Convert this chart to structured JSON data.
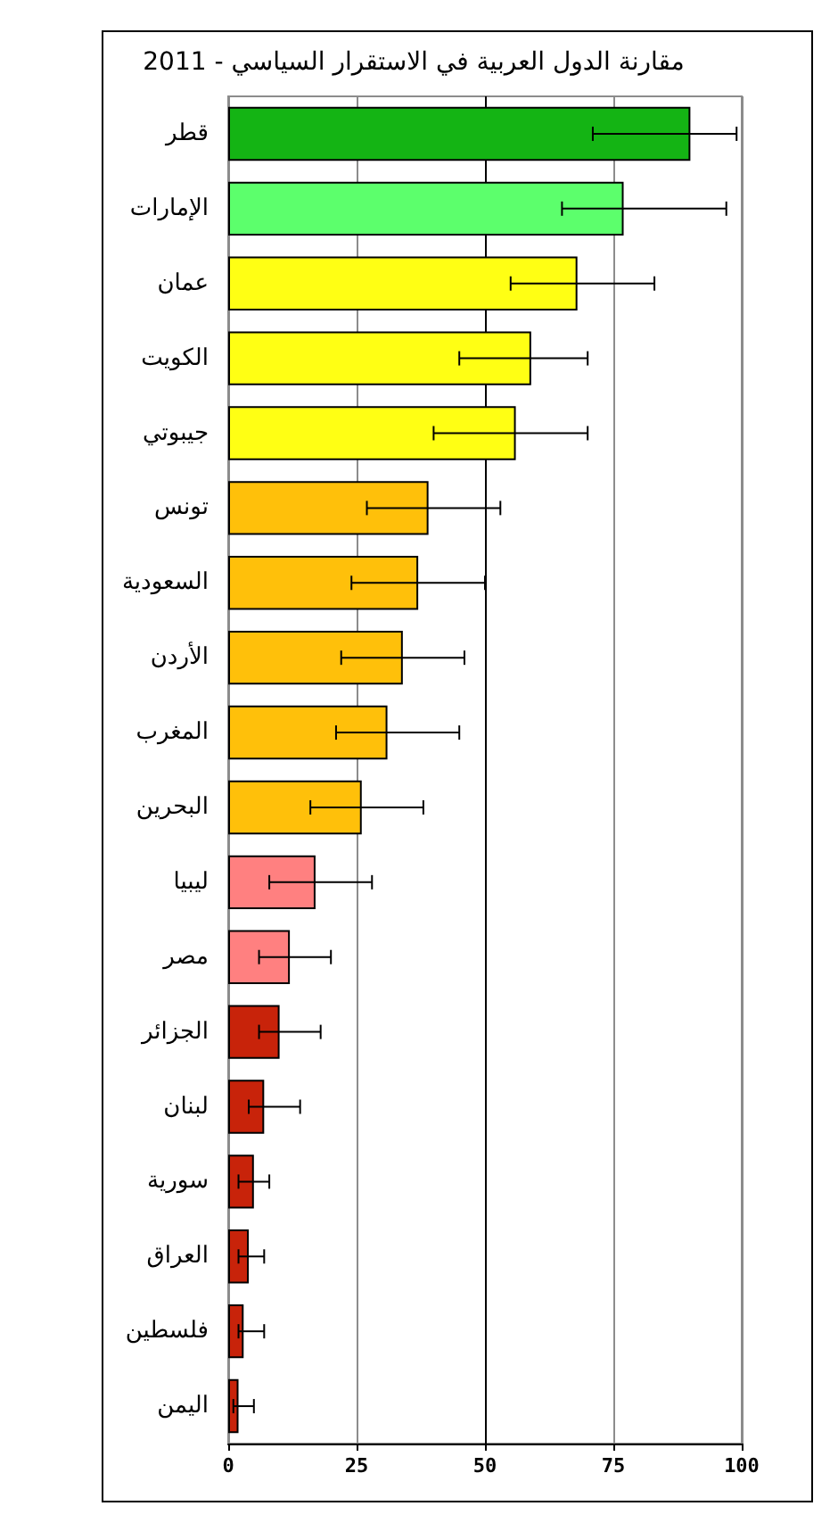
{
  "chart_data": {
    "type": "bar",
    "orientation": "horizontal",
    "title": "مقارنة الدول العربية في الاستقرار السياسي - 2011",
    "categories": [
      "قطر",
      "الإمارات",
      "عمان",
      "الكويت",
      "جيبوتي",
      "تونس",
      "السعودية",
      "الأردن",
      "المغرب",
      "البحرين",
      "ليبيا",
      "مصر",
      "الجزائر",
      "لبنان",
      "سورية",
      "العراق",
      "فلسطين",
      "اليمن"
    ],
    "values": [
      90,
      77,
      68,
      59,
      56,
      39,
      37,
      34,
      31,
      26,
      17,
      12,
      10,
      7,
      5,
      4,
      3,
      2
    ],
    "errors": [
      [
        71,
        99
      ],
      [
        65,
        97
      ],
      [
        55,
        83
      ],
      [
        45,
        70
      ],
      [
        40,
        70
      ],
      [
        27,
        53
      ],
      [
        24,
        50
      ],
      [
        22,
        46
      ],
      [
        21,
        45
      ],
      [
        16,
        38
      ],
      [
        8,
        28
      ],
      [
        6,
        20
      ],
      [
        6,
        18
      ],
      [
        4,
        14
      ],
      [
        2,
        8
      ],
      [
        2,
        7
      ],
      [
        2,
        7
      ],
      [
        1,
        5
      ]
    ],
    "colors": [
      "#14b414",
      "#5cff6c",
      "#ffff14",
      "#ffff14",
      "#ffff14",
      "#ffc00a",
      "#ffc00a",
      "#ffc00a",
      "#ffc00a",
      "#ffc00a",
      "#ff8080",
      "#ff8080",
      "#c8230a",
      "#c8230a",
      "#c8230a",
      "#c8230a",
      "#c8230a",
      "#c8230a"
    ],
    "xlim": [
      0,
      100
    ],
    "xticks": [
      0,
      25,
      50,
      75,
      100
    ],
    "grid": "x",
    "ref_lines": [
      {
        "axis": "x",
        "value": 50,
        "color": "#000000"
      }
    ]
  }
}
